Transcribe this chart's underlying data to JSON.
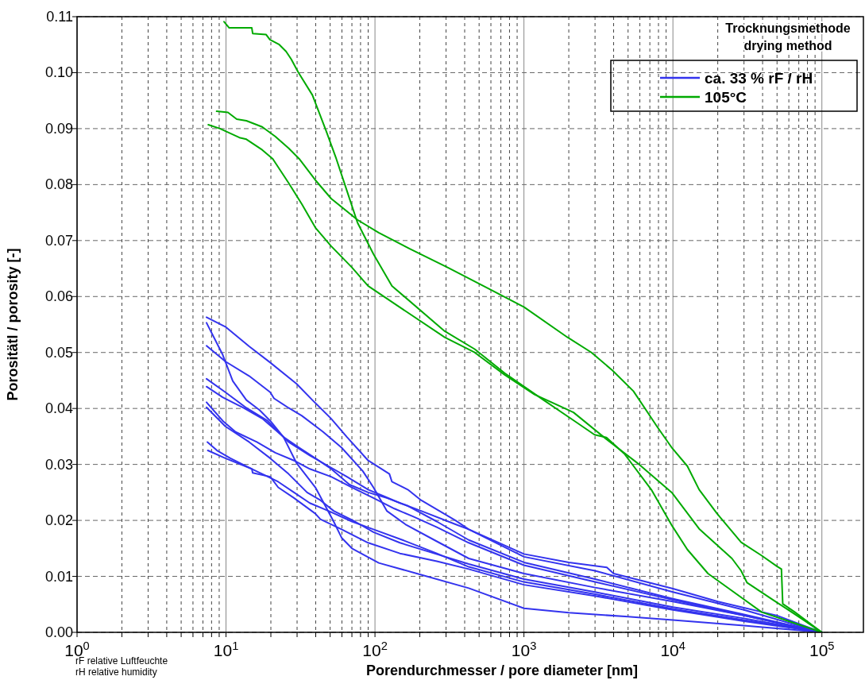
{
  "chart_data": {
    "type": "line",
    "xlabel": "Porendurchmesser / pore diameter [nm]",
    "ylabel": "Porositätl / porosity [-]",
    "legend_title": "Trocknungsmethode\ndrying method",
    "legend": "top right",
    "grid": true,
    "log": "x",
    "line_style": "solid",
    "annotations": [
      "rF relative Luftfeuchte",
      "rH relative humidity"
    ],
    "xlim": [
      1,
      190000
    ],
    "ylim": [
      0,
      0.11
    ],
    "xticks": [
      {
        "value": 1,
        "label": "10$^{0}$"
      },
      {
        "value": 2,
        "label": null
      },
      {
        "value": 3,
        "label": null
      },
      {
        "value": 4,
        "label": null
      },
      {
        "value": 5,
        "label": null
      },
      {
        "value": 6,
        "label": null
      },
      {
        "value": 7,
        "label": null
      },
      {
        "value": 8,
        "label": null
      },
      {
        "value": 9,
        "label": null
      },
      {
        "value": 10,
        "label": "10$^{1}$"
      },
      {
        "value": 20,
        "label": null
      },
      {
        "value": 30,
        "label": null
      },
      {
        "value": 40,
        "label": null
      },
      {
        "value": 50,
        "label": null
      },
      {
        "value": 60,
        "label": null
      },
      {
        "value": 70,
        "label": null
      },
      {
        "value": 80,
        "label": null
      },
      {
        "value": 90,
        "label": null
      },
      {
        "value": 100,
        "label": "10$^{2}$"
      },
      {
        "value": 200,
        "label": null
      },
      {
        "value": 300,
        "label": null
      },
      {
        "value": 400,
        "label": null
      },
      {
        "value": 500,
        "label": null
      },
      {
        "value": 600,
        "label": null
      },
      {
        "value": 700,
        "label": null
      },
      {
        "value": 800,
        "label": null
      },
      {
        "value": 900,
        "label": null
      },
      {
        "value": 1000,
        "label": "10$^{3}$"
      },
      {
        "value": 2000,
        "label": null
      },
      {
        "value": 3000,
        "label": null
      },
      {
        "value": 4000,
        "label": null
      },
      {
        "value": 5000,
        "label": null
      },
      {
        "value": 6000,
        "label": null
      },
      {
        "value": 7000,
        "label": null
      },
      {
        "value": 8000,
        "label": null
      },
      {
        "value": 9000,
        "label": null
      },
      {
        "value": 10000,
        "label": "10$^{4}$"
      },
      {
        "value": 20000,
        "label": null
      },
      {
        "value": 30000,
        "label": null
      },
      {
        "value": 40000,
        "label": null
      },
      {
        "value": 50000,
        "label": null
      },
      {
        "value": 60000,
        "label": null
      },
      {
        "value": 70000,
        "label": null
      },
      {
        "value": 80000,
        "label": null
      },
      {
        "value": 90000,
        "label": null
      },
      {
        "value": 100000,
        "label": "10$^{5}$"
      }
    ],
    "yticks": [
      {
        "value": 0,
        "label": "0.00"
      },
      {
        "value": 0.01,
        "label": "0.01"
      },
      {
        "value": 0.02,
        "label": "0.02"
      },
      {
        "value": 0.03,
        "label": "0.03"
      },
      {
        "value": 0.04,
        "label": "0.04"
      },
      {
        "value": 0.05,
        "label": "0.05"
      },
      {
        "value": 0.06,
        "label": "0.06"
      },
      {
        "value": 0.07,
        "label": "0.07"
      },
      {
        "value": 0.08,
        "label": "0.08"
      },
      {
        "value": 0.09,
        "label": "0.09"
      },
      {
        "value": 0.1,
        "label": "0.10"
      },
      {
        "value": 0.11,
        "label": "0.11"
      }
    ],
    "series": [
      {
        "name": "ca. 33 % rF / rH",
        "color": "#3333ee",
        "x": [
          7.4,
          9.9,
          14.3,
          19.8,
          29.8,
          38,
          50.7,
          64.8,
          90,
          125,
          130,
          166,
          204,
          347,
          426,
          1000,
          3000,
          10000,
          30000,
          100000
        ],
        "values": [
          0.0563,
          0.0546,
          0.0511,
          0.0482,
          0.0444,
          0.0415,
          0.0382,
          0.0349,
          0.0307,
          0.0283,
          0.0269,
          0.0255,
          0.0236,
          0.02,
          0.0184,
          0.0135,
          0.011,
          0.0072,
          0.004,
          0
        ]
      },
      {
        "color": "#3333ee",
        "x": [
          7.4,
          9.5,
          11.1,
          13.7,
          16.8,
          19.8,
          24.3,
          29.8,
          39.8,
          52.8,
          59.7,
          70,
          106,
          204,
          426,
          1000,
          2000,
          5000,
          10000,
          30000,
          100000
        ],
        "values": [
          0.0553,
          0.0496,
          0.0449,
          0.0415,
          0.0397,
          0.0378,
          0.0349,
          0.0302,
          0.0259,
          0.0198,
          0.0169,
          0.015,
          0.0124,
          0.0103,
          0.0079,
          0.0043,
          0.0035,
          0.0028,
          0.0022,
          0.0012,
          0
        ]
      },
      {
        "color": "#3333ee",
        "x": [
          7.4,
          9.9,
          14.3,
          19.8,
          21,
          26.3,
          32.3,
          44.9,
          59.7,
          82.9,
          97.6,
          120,
          160,
          250,
          426,
          1000,
          3000,
          10000,
          30000,
          100000
        ],
        "values": [
          0.0512,
          0.0484,
          0.0458,
          0.0429,
          0.0418,
          0.0401,
          0.0387,
          0.0358,
          0.033,
          0.0288,
          0.0259,
          0.0217,
          0.0193,
          0.0165,
          0.0132,
          0.0105,
          0.008,
          0.0055,
          0.003,
          0
        ]
      },
      {
        "color": "#3333ee",
        "x": [
          7.4,
          9.9,
          13.7,
          19,
          26.3,
          36.5,
          48.7,
          64.8,
          90,
          115,
          147,
          204,
          347,
          426,
          1000,
          2000,
          3600,
          4000,
          10000,
          20000,
          50000,
          100000
        ],
        "values": [
          0.0453,
          0.0429,
          0.0401,
          0.0378,
          0.034,
          0.0316,
          0.0297,
          0.0278,
          0.0255,
          0.0243,
          0.0231,
          0.0217,
          0.0193,
          0.0184,
          0.014,
          0.0125,
          0.0116,
          0.0105,
          0.0078,
          0.0055,
          0.003,
          0
        ]
      },
      {
        "color": "#3333ee",
        "x": [
          7.4,
          9.5,
          13.1,
          17.5,
          24.3,
          31,
          39.8,
          50.8,
          67.4,
          90,
          120,
          166,
          260,
          426,
          1000,
          3000,
          10000,
          30000,
          100000
        ],
        "values": [
          0.0439,
          0.042,
          0.0401,
          0.0382,
          0.0349,
          0.033,
          0.0311,
          0.0292,
          0.0264,
          0.025,
          0.024,
          0.0226,
          0.0198,
          0.0165,
          0.0125,
          0.0095,
          0.006,
          0.0032,
          0
        ]
      },
      {
        "color": "#3333ee",
        "x": [
          7.4,
          9.5,
          11.6,
          16.1,
          21.4,
          28.6,
          36.5,
          50.8,
          70,
          97.6,
          135,
          180,
          260,
          426,
          1000,
          3000,
          10000,
          30000,
          100000
        ],
        "values": [
          0.0411,
          0.0378,
          0.0358,
          0.034,
          0.0321,
          0.0307,
          0.0292,
          0.0278,
          0.0259,
          0.024,
          0.0221,
          0.0207,
          0.0188,
          0.016,
          0.012,
          0.009,
          0.0058,
          0.003,
          0
        ]
      },
      {
        "color": "#3333ee",
        "x": [
          7.4,
          9.9,
          14.3,
          19.8,
          26.3,
          35,
          43,
          52.8,
          73.3,
          97.6,
          147,
          250,
          426,
          1000,
          3000,
          10000,
          30000,
          100000
        ],
        "values": [
          0.0402,
          0.0368,
          0.034,
          0.0311,
          0.0283,
          0.025,
          0.0236,
          0.0217,
          0.0198,
          0.0179,
          0.016,
          0.0141,
          0.0122,
          0.0095,
          0.0072,
          0.0045,
          0.0025,
          0
        ]
      },
      {
        "color": "#3333ee",
        "x": [
          7.5,
          8.7,
          10.7,
          14.9,
          17.5,
          22.4,
          28.6,
          36.5,
          48.7,
          70,
          97.6,
          153,
          260,
          426,
          1000,
          3000,
          10000,
          30000,
          100000
        ],
        "values": [
          0.034,
          0.0325,
          0.0311,
          0.0292,
          0.0283,
          0.0269,
          0.025,
          0.0231,
          0.0217,
          0.0198,
          0.0184,
          0.0165,
          0.0141,
          0.0117,
          0.009,
          0.0068,
          0.0042,
          0.0022,
          0
        ]
      },
      {
        "color": "#3333ee",
        "x": [
          7.55,
          9.9,
          14.9,
          15.1,
          19.8,
          22.4,
          28.6,
          39.8,
          43,
          59.7,
          90,
          147,
          260,
          426,
          1000,
          3000,
          10000,
          30000,
          100000
        ],
        "values": [
          0.0325,
          0.0311,
          0.0292,
          0.0285,
          0.0278,
          0.0259,
          0.024,
          0.0212,
          0.0202,
          0.0184,
          0.016,
          0.0141,
          0.0127,
          0.0113,
          0.0085,
          0.0065,
          0.004,
          0.002,
          0
        ]
      },
      {
        "name": "105°C",
        "color": "#00aa00",
        "x": [
          9.7,
          10.5,
          14.9,
          15.1,
          18.6,
          19.7,
          22.8,
          25.3,
          27.4,
          30.5,
          38,
          46.7,
          55,
          64.8,
          76.3,
          97.6,
          130,
          294,
          467,
          743,
          1355,
          2255,
          2977,
          3580,
          4720,
          7160,
          9890,
          12500,
          17200,
          23800,
          39500,
          100000
        ],
        "values": [
          0.1091,
          0.108,
          0.108,
          0.107,
          0.1068,
          0.1059,
          0.105,
          0.1038,
          0.1024,
          0.1001,
          0.096,
          0.0898,
          0.0846,
          0.0789,
          0.0732,
          0.0676,
          0.0619,
          0.0538,
          0.0506,
          0.0463,
          0.0415,
          0.0375,
          0.0353,
          0.0348,
          0.0319,
          0.0255,
          0.019,
          0.0148,
          0.0105,
          0.0078,
          0.0036,
          0
        ]
      },
      {
        "color": "#00aa00",
        "x": [
          8.65,
          10.3,
          11.8,
          13.7,
          17.5,
          21.4,
          26.3,
          31,
          39.8,
          50.8,
          76.3,
          105.8,
          172,
          307,
          590,
          1003,
          1963,
          2840,
          3925,
          5430,
          7860,
          9890,
          12500,
          15000,
          19800,
          28700,
          39500,
          49900,
          53500,
          54600,
          65900,
          100000
        ],
        "values": [
          0.0931,
          0.0929,
          0.0917,
          0.0914,
          0.0903,
          0.0886,
          0.0865,
          0.0846,
          0.0808,
          0.0775,
          0.0737,
          0.0714,
          0.0685,
          0.0652,
          0.0613,
          0.0581,
          0.0527,
          0.05,
          0.0468,
          0.0431,
          0.0367,
          0.0329,
          0.0297,
          0.0255,
          0.0212,
          0.0161,
          0.0137,
          0.0118,
          0.0113,
          0.0051,
          0.0036,
          0
        ]
      },
      {
        "color": "#00aa00",
        "x": [
          7.6,
          9.1,
          12.3,
          13.7,
          17.5,
          20.6,
          26.3,
          32.3,
          39.8,
          50.8,
          70,
          89.8,
          294,
          467,
          743,
          1178,
          2150,
          3580,
          5940,
          9890,
          15000,
          24900,
          28700,
          31400,
          47600,
          62800,
          100000
        ],
        "values": [
          0.0907,
          0.09,
          0.0884,
          0.0881,
          0.0862,
          0.0846,
          0.0803,
          0.0765,
          0.0723,
          0.069,
          0.0652,
          0.0619,
          0.0527,
          0.05,
          0.046,
          0.0425,
          0.0393,
          0.0345,
          0.03,
          0.0249,
          0.0185,
          0.0132,
          0.011,
          0.0089,
          0.0057,
          0.0036,
          0
        ]
      }
    ]
  }
}
